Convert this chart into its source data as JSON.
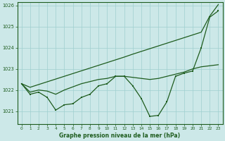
{
  "x": [
    0,
    1,
    2,
    3,
    4,
    5,
    6,
    7,
    8,
    9,
    10,
    11,
    12,
    13,
    14,
    15,
    16,
    17,
    18,
    19,
    20,
    21,
    22,
    23
  ],
  "line_zigzag": [
    1022.3,
    1021.8,
    1021.9,
    1021.65,
    1021.05,
    1021.3,
    1021.35,
    1021.65,
    1021.8,
    1022.2,
    1022.3,
    1022.65,
    1022.65,
    1022.2,
    1021.6,
    1020.75,
    1020.8,
    1021.45,
    1022.65,
    1022.8,
    1022.9,
    1024.0,
    1025.45,
    1025.75
  ],
  "line_mid": [
    1022.3,
    1021.9,
    1022.0,
    1021.95,
    1021.8,
    1022.0,
    1022.15,
    1022.3,
    1022.4,
    1022.5,
    1022.55,
    1022.65,
    1022.65,
    1022.6,
    1022.55,
    1022.5,
    1022.55,
    1022.65,
    1022.75,
    1022.85,
    1023.0,
    1023.1,
    1023.15,
    1023.2
  ],
  "line_straight": [
    1022.3,
    1022.13,
    1022.26,
    1022.39,
    1022.52,
    1022.65,
    1022.78,
    1022.91,
    1023.04,
    1023.17,
    1023.3,
    1023.43,
    1023.56,
    1023.7,
    1023.83,
    1023.96,
    1024.09,
    1024.22,
    1024.35,
    1024.48,
    1024.61,
    1024.74,
    1025.5,
    1026.05
  ],
  "ylim": [
    1020.4,
    1026.15
  ],
  "yticks": [
    1021,
    1022,
    1023,
    1024,
    1025,
    1026
  ],
  "xtick_labels": [
    "0",
    "1",
    "2",
    "3",
    "4",
    "5",
    "6",
    "7",
    "8",
    "9",
    "10",
    "11",
    "12",
    "13",
    "14",
    "15",
    "16",
    "17",
    "18",
    "19",
    "20",
    "21",
    "22",
    "23"
  ],
  "xlabel": "Graphe pression niveau de la mer (hPa)",
  "bg_color": "#cce8e8",
  "line_color": "#1e5c1e",
  "grid_color": "#9fcfcf"
}
